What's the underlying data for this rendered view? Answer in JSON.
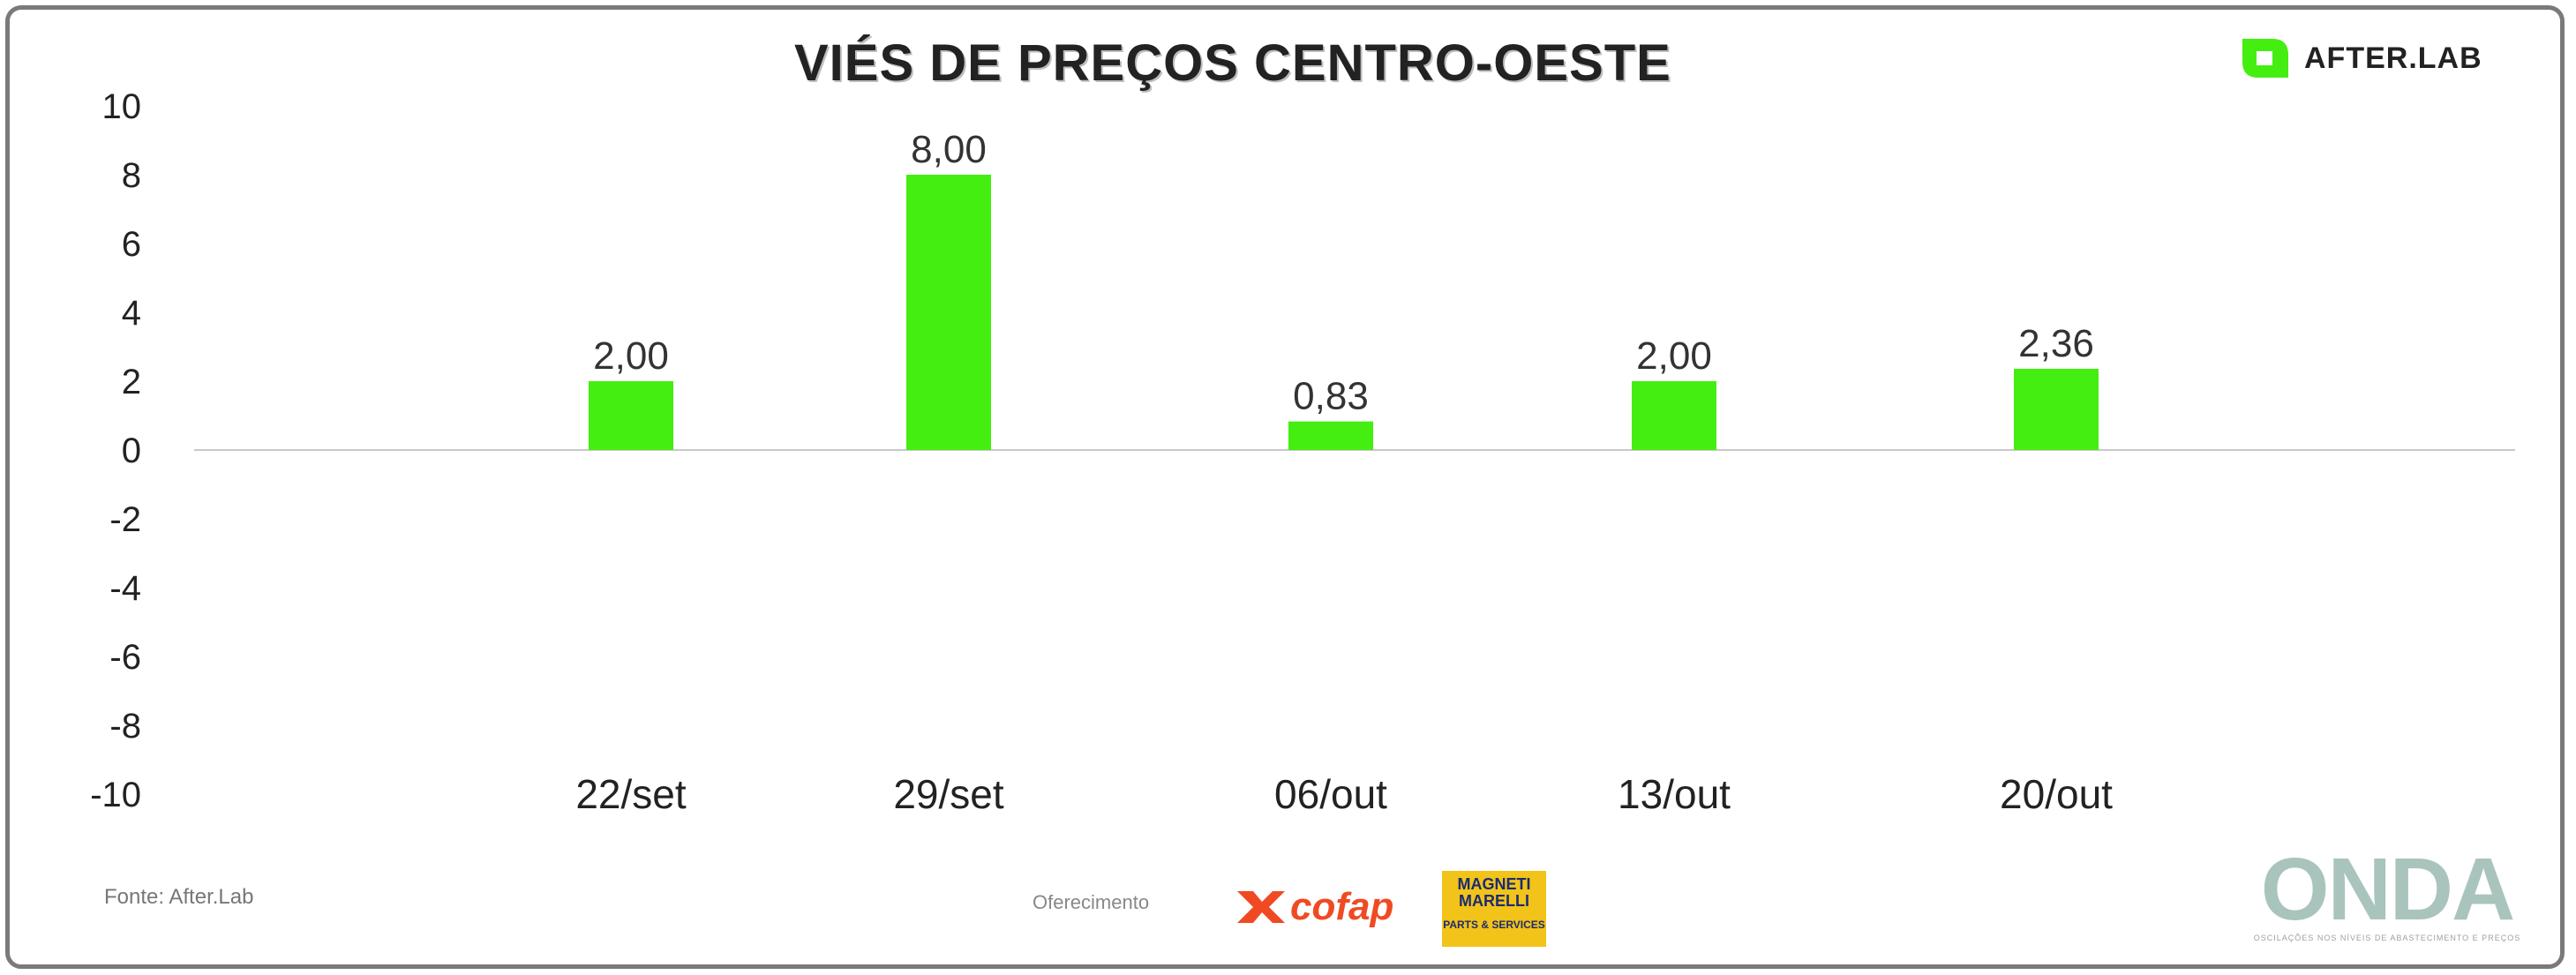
{
  "header": {
    "title": "VIÉS DE PREÇOS CENTRO-OESTE",
    "brand_name": "AFTER.LAB"
  },
  "chart_data": {
    "type": "bar",
    "title": "VIÉS DE PREÇOS CENTRO-OESTE",
    "categories": [
      "22/set",
      "29/set",
      "06/out",
      "13/out",
      "20/out"
    ],
    "values": [
      2.0,
      8.0,
      0.83,
      2.0,
      2.36
    ],
    "data_labels": [
      "2,00",
      "8,00",
      "0,83",
      "2,00",
      "2,36"
    ],
    "y_ticks": [
      "10",
      "8",
      "6",
      "4",
      "2",
      "0",
      "-2",
      "-4",
      "-6",
      "-8",
      "-10"
    ],
    "ylim": [
      -10,
      10
    ],
    "xlabel": "",
    "ylabel": "",
    "grid": false,
    "legend": "none",
    "bar_color": "#44ee11"
  },
  "footer": {
    "source": "Fonte: After.Lab",
    "sponsor_label": "Oferecimento",
    "sponsors": [
      {
        "name": "cofap",
        "color": "#f04a23"
      },
      {
        "name": "MAGNETI\nMARELLI",
        "sub": "PARTS & SERVICES",
        "color": "#f2c318"
      }
    ],
    "onda_name": "ONDA",
    "onda_tagline": "OSCILAÇÕES NOS NÍVEIS DE ABASTECIMENTO E PREÇOS"
  }
}
